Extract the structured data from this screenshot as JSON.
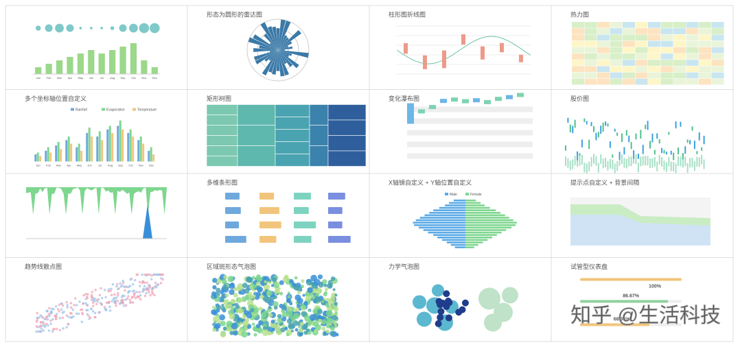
{
  "watermark": "知乎 @生活科技",
  "tiles": [
    {
      "categories": [
        "Jan",
        "Feb",
        "Mar",
        "Apr",
        "May",
        "Jun",
        "Jul",
        "Aug",
        "Sep",
        "Oct",
        "Nov",
        "Dec"
      ],
      "values": [
        2,
        3,
        4,
        5,
        6,
        7,
        6,
        7,
        8,
        9,
        4,
        2
      ],
      "sizes": [
        3,
        5,
        6,
        5,
        1,
        1,
        1,
        2,
        5,
        6,
        7,
        7
      ],
      "ylim": [
        0,
        10
      ]
    },
    {
      "title": "形态为圆形的雷达图"
    },
    {
      "title": "柱形图折线图"
    },
    {
      "title": "热力图"
    },
    {
      "title": "多个坐标轴位置自定义",
      "categories": [
        "Jan",
        "Feb",
        "Mar",
        "Apr",
        "May",
        "Jun",
        "Jul",
        "Aug",
        "Sep",
        "Oct",
        "Nov",
        "Dec"
      ],
      "ylim": [
        0,
        250
      ],
      "series": [
        {
          "name": "Rainfall",
          "color": "#6fa8dc",
          "values": [
            40,
            60,
            90,
            120,
            80,
            160,
            140,
            180,
            200,
            160,
            120,
            60
          ]
        },
        {
          "name": "Evaporation",
          "color": "#7ed68f",
          "values": [
            50,
            80,
            110,
            140,
            100,
            190,
            170,
            200,
            230,
            180,
            140,
            80
          ]
        },
        {
          "name": "Temperature",
          "color": "#f2c57c",
          "values": [
            30,
            50,
            70,
            100,
            60,
            140,
            120,
            160,
            180,
            140,
            100,
            40
          ]
        }
      ]
    },
    {
      "title": "矩形树图"
    },
    {
      "title": "变化瀑布图"
    },
    {
      "title": "股价图"
    },
    {},
    {
      "title": "多维条形图"
    },
    {
      "title": "X轴镜自定义 + Y轴位置自定义",
      "xlim": [
        0,
        100
      ],
      "series": [
        {
          "name": "Male",
          "color": "#5aa9e6",
          "values": [
            20,
            28,
            35,
            45,
            55,
            62,
            70,
            78,
            85,
            90,
            88,
            80,
            72,
            64,
            55,
            48,
            40,
            32,
            25,
            18
          ]
        },
        {
          "name": "Female",
          "color": "#7ed68f",
          "values": [
            18,
            26,
            33,
            42,
            52,
            60,
            68,
            75,
            82,
            88,
            86,
            79,
            70,
            62,
            54,
            46,
            38,
            30,
            22,
            15
          ]
        }
      ]
    },
    {
      "title": "提示点自定义 + 背景间隔"
    },
    {
      "title": "趋势线散点图"
    },
    {
      "title": "区域斑形态气泡图"
    },
    {
      "title": "力学气泡图"
    },
    {
      "title": "试管型仪表盘",
      "xlim": [
        0,
        100
      ],
      "values": [
        100,
        86.67,
        68.33
      ],
      "value_labels": [
        "100%",
        "86.67%",
        "68.33%"
      ],
      "colors": [
        "#f2c57c",
        "#8fd19e",
        "#f2c57c"
      ]
    }
  ]
}
